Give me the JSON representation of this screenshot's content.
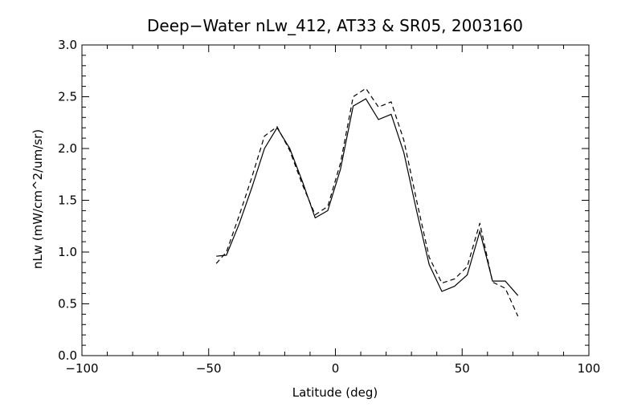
{
  "chart_data": {
    "type": "line",
    "title": "Deep−Water nLw_412, AT33 & SR05, 2003160",
    "xlabel": "Latitude (deg)",
    "ylabel": "nLw (mW/cm^2/um/sr)",
    "xlim": [
      -100,
      100
    ],
    "ylim": [
      0.0,
      3.0
    ],
    "xticks": [
      -100,
      -50,
      0,
      50,
      100
    ],
    "xtick_labels": [
      "−100",
      "−50",
      "0",
      "50",
      "100"
    ],
    "yticks": [
      0.0,
      0.5,
      1.0,
      1.5,
      2.0,
      2.5,
      3.0
    ],
    "ytick_labels": [
      "0.0",
      "0.5",
      "1.0",
      "1.5",
      "2.0",
      "2.5",
      "3.0"
    ],
    "grid": false,
    "series": [
      {
        "style": "solid",
        "x": [
          -47,
          -43,
          -38,
          -33,
          -28,
          -23,
          -18,
          -13,
          -8,
          -3,
          2,
          7,
          12,
          17,
          22,
          27,
          32,
          37,
          42,
          47,
          52,
          57,
          62,
          67,
          72
        ],
        "y": [
          0.96,
          0.97,
          1.27,
          1.62,
          2.0,
          2.2,
          2.0,
          1.68,
          1.33,
          1.4,
          1.8,
          2.41,
          2.48,
          2.28,
          2.33,
          1.96,
          1.4,
          0.88,
          0.62,
          0.67,
          0.78,
          1.2,
          0.72,
          0.72,
          0.58
        ]
      },
      {
        "style": "dashed",
        "x": [
          -47,
          -43,
          -38,
          -33,
          -28,
          -23,
          -18,
          -13,
          -8,
          -3,
          2,
          7,
          12,
          17,
          22,
          27,
          32,
          37,
          42,
          47,
          52,
          57,
          62,
          67,
          72
        ],
        "y": [
          0.89,
          1.0,
          1.35,
          1.72,
          2.12,
          2.21,
          1.98,
          1.65,
          1.36,
          1.44,
          1.86,
          2.5,
          2.58,
          2.4,
          2.45,
          2.08,
          1.5,
          0.95,
          0.7,
          0.74,
          0.86,
          1.28,
          0.71,
          0.65,
          0.38
        ]
      }
    ]
  }
}
